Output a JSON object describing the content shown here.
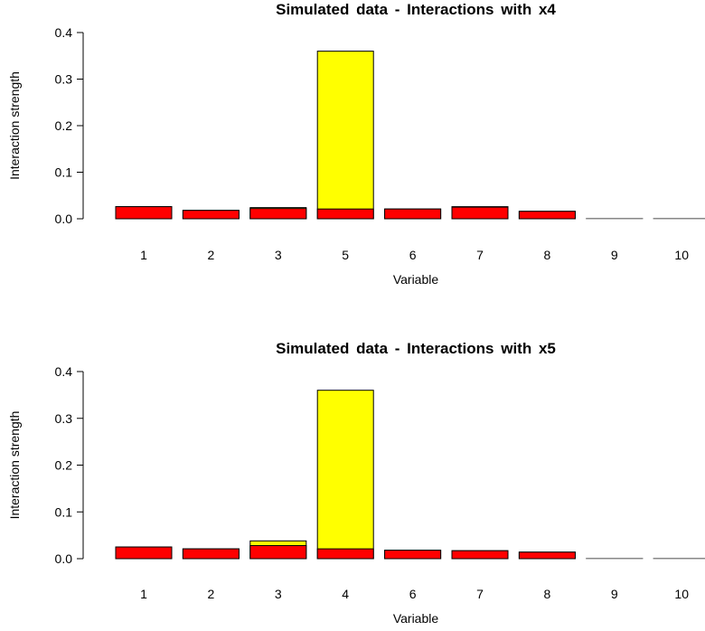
{
  "chart_data": [
    {
      "type": "bar",
      "title": "Simulated data  -  Interactions  with  x4",
      "xlabel": "Variable",
      "ylabel": "Interaction strength",
      "ylim": [
        0,
        0.4
      ],
      "yticks": [
        "0.0",
        "0.1",
        "0.2",
        "0.3",
        "0.4"
      ],
      "categories": [
        "1",
        "2",
        "3",
        "5",
        "6",
        "7",
        "8",
        "9",
        "10"
      ],
      "series": [
        {
          "fill": "#ffff00",
          "values": [
            0.026,
            0.018,
            0.024,
            0.36,
            0.021,
            0.026,
            0.016,
            0.001,
            0.001
          ]
        },
        {
          "fill": "#ff0000",
          "values": [
            0.026,
            0.018,
            0.022,
            0.021,
            0.021,
            0.025,
            0.016,
            0.001,
            0.001
          ]
        }
      ]
    },
    {
      "type": "bar",
      "title": "Simulated data  -  Interactions  with  x5",
      "xlabel": "Variable",
      "ylabel": "Interaction strength",
      "ylim": [
        0,
        0.4
      ],
      "yticks": [
        "0.0",
        "0.1",
        "0.2",
        "0.3",
        "0.4"
      ],
      "categories": [
        "1",
        "2",
        "3",
        "4",
        "6",
        "7",
        "8",
        "9",
        "10"
      ],
      "series": [
        {
          "fill": "#ffff00",
          "values": [
            0.025,
            0.021,
            0.038,
            0.36,
            0.018,
            0.017,
            0.014,
            0.001,
            0.001
          ]
        },
        {
          "fill": "#ff0000",
          "values": [
            0.025,
            0.021,
            0.028,
            0.021,
            0.018,
            0.017,
            0.014,
            0.001,
            0.001
          ]
        }
      ]
    }
  ]
}
